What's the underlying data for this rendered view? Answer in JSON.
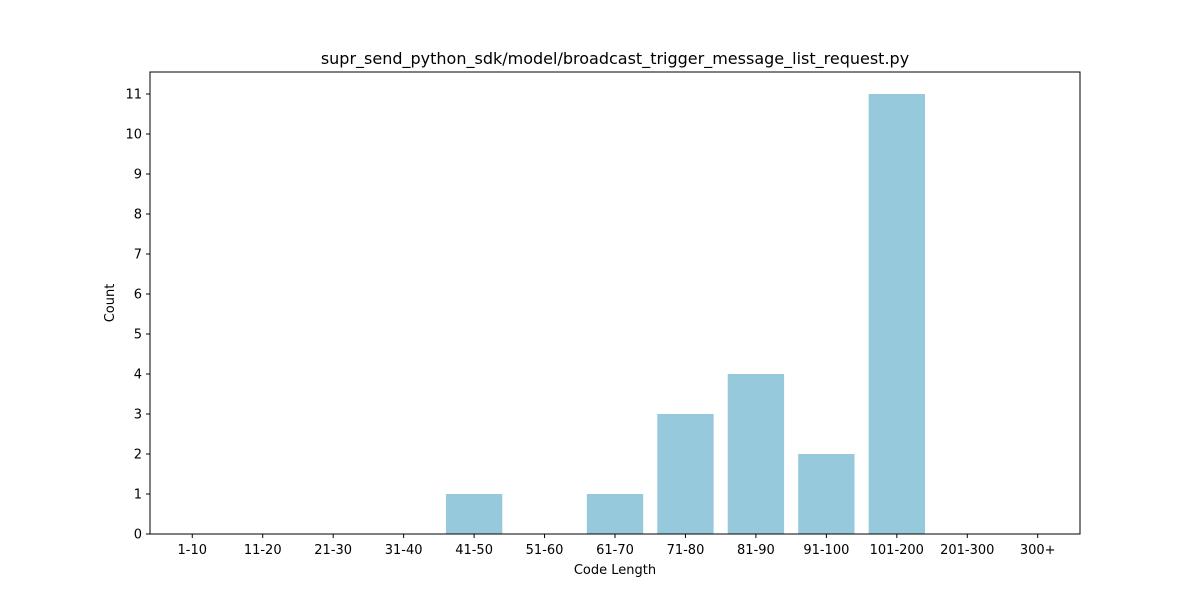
{
  "chart_data": {
    "type": "bar",
    "title": "supr_send_python_sdk/model/broadcast_trigger_message_list_request.py",
    "xlabel": "Code Length",
    "ylabel": "Count",
    "categories": [
      "1-10",
      "11-20",
      "21-30",
      "31-40",
      "41-50",
      "51-60",
      "61-70",
      "71-80",
      "81-90",
      "91-100",
      "101-200",
      "201-300",
      "300+"
    ],
    "values": [
      0,
      0,
      0,
      0,
      1,
      0,
      1,
      3,
      4,
      2,
      11,
      0,
      0
    ],
    "yticks": [
      0,
      1,
      2,
      3,
      4,
      5,
      6,
      7,
      8,
      9,
      10,
      11
    ],
    "ylim": [
      0,
      11.55
    ],
    "grid": false,
    "bar_color": "#96c9dc"
  }
}
